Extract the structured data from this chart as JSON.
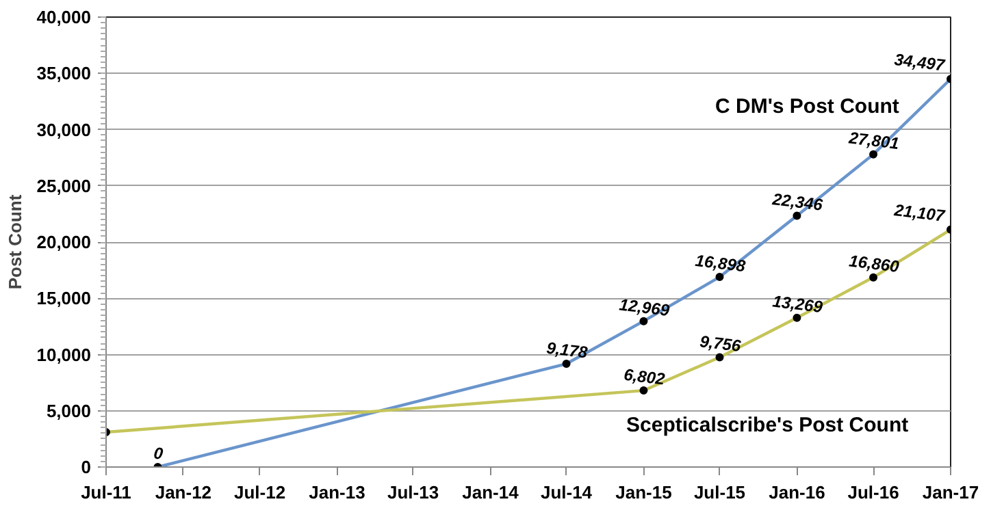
{
  "chart_data": {
    "type": "line",
    "ylabel": "Post Count",
    "xlim": [
      "2011-07",
      "2017-01"
    ],
    "ylim": [
      0,
      40000
    ],
    "xticks": [
      {
        "value": "2011-07",
        "label": "Jul-11"
      },
      {
        "value": "2012-01",
        "label": "Jan-12"
      },
      {
        "value": "2012-07",
        "label": "Jul-12"
      },
      {
        "value": "2013-01",
        "label": "Jan-13"
      },
      {
        "value": "2013-07",
        "label": "Jul-13"
      },
      {
        "value": "2014-01",
        "label": "Jan-14"
      },
      {
        "value": "2014-07",
        "label": "Jul-14"
      },
      {
        "value": "2015-01",
        "label": "Jan-15"
      },
      {
        "value": "2015-07",
        "label": "Jul-15"
      },
      {
        "value": "2016-01",
        "label": "Jan-16"
      },
      {
        "value": "2016-07",
        "label": "Jul-16"
      },
      {
        "value": "2017-01",
        "label": "Jan-17"
      }
    ],
    "yticks": [
      {
        "value": 0,
        "label": "0"
      },
      {
        "value": 5000,
        "label": "5,000"
      },
      {
        "value": 10000,
        "label": "10,000"
      },
      {
        "value": 15000,
        "label": "15,000"
      },
      {
        "value": 20000,
        "label": "20,000"
      },
      {
        "value": 25000,
        "label": "25,000"
      },
      {
        "value": 30000,
        "label": "30,000"
      },
      {
        "value": 35000,
        "label": "35,000"
      },
      {
        "value": 40000,
        "label": "40,000"
      }
    ],
    "grid": "y",
    "marker": "circle",
    "line_style": "solid",
    "legend": false,
    "series": [
      {
        "name": "C DM's Post Count",
        "color": "#6a95cc",
        "x": [
          "2011-11",
          "2014-07",
          "2015-01",
          "2015-07",
          "2016-01",
          "2016-07",
          "2017-01"
        ],
        "values": [
          0,
          9178,
          12969,
          16898,
          22346,
          27801,
          34497
        ],
        "value_labels": [
          "0",
          "9,178",
          "12,969",
          "16,898",
          "22,346",
          "27,801",
          "34,497"
        ]
      },
      {
        "name": "Scepticalscribe's Post Count",
        "color": "#c5c55a",
        "x": [
          "2011-07",
          "2015-01",
          "2015-07",
          "2016-01",
          "2016-07",
          "2017-01"
        ],
        "values": [
          3100,
          6802,
          9756,
          13269,
          16860,
          21107
        ],
        "value_labels": [
          null,
          "6,802",
          "9,756",
          "13,269",
          "16,860",
          "21,107"
        ]
      }
    ]
  }
}
